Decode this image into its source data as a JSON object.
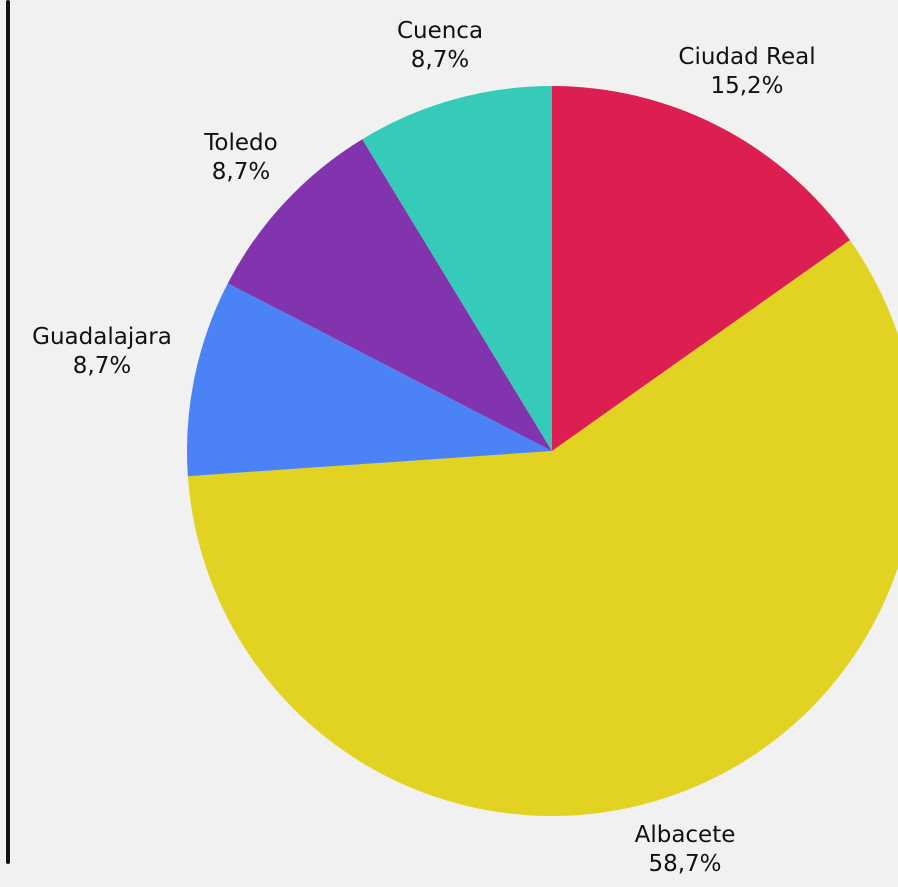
{
  "chart_data": {
    "type": "pie",
    "start_angle": "12 o'clock",
    "direction": "clockwise",
    "slices": [
      {
        "label": "Ciudad Real",
        "value": 15.2,
        "value_label": "15,2%",
        "color": "#dc1e50"
      },
      {
        "label": "Albacete",
        "value": 58.7,
        "value_label": "58,7%",
        "color": "#e2d322"
      },
      {
        "label": "Guadalajara",
        "value": 8.7,
        "value_label": "8,7%",
        "color": "#4b82f6"
      },
      {
        "label": "Toledo",
        "value": 8.7,
        "value_label": "8,7%",
        "color": "#8233ae"
      },
      {
        "label": "Cuenca",
        "value": 8.7,
        "value_label": "8,7%",
        "color": "#35cbb8"
      }
    ]
  }
}
